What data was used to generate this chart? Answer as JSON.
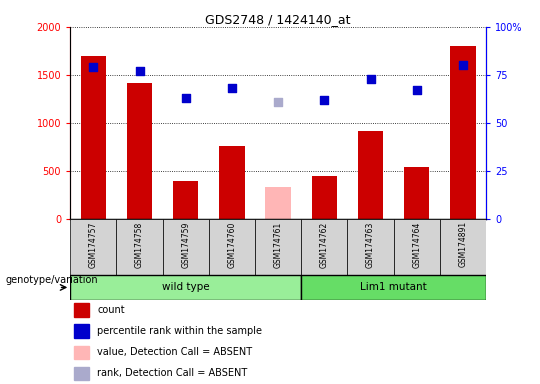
{
  "title": "GDS2748 / 1424140_at",
  "samples": [
    "GSM174757",
    "GSM174758",
    "GSM174759",
    "GSM174760",
    "GSM174761",
    "GSM174762",
    "GSM174763",
    "GSM174764",
    "GSM174891"
  ],
  "counts": [
    1700,
    1420,
    390,
    760,
    null,
    450,
    920,
    540,
    1800
  ],
  "counts_absent": [
    null,
    null,
    null,
    null,
    330,
    null,
    null,
    null,
    null
  ],
  "percentile_ranks": [
    79,
    77,
    63,
    68,
    null,
    62,
    73,
    67,
    80
  ],
  "percentile_absent": [
    null,
    null,
    null,
    null,
    61,
    null,
    null,
    null,
    null
  ],
  "wild_type_indices": [
    0,
    1,
    2,
    3,
    4
  ],
  "lim1_mutant_indices": [
    5,
    6,
    7,
    8
  ],
  "ylim_left": [
    0,
    2000
  ],
  "ylim_right": [
    0,
    100
  ],
  "yticks_left": [
    0,
    500,
    1000,
    1500,
    2000
  ],
  "ytick_labels_left": [
    "0",
    "500",
    "1000",
    "1500",
    "2000"
  ],
  "yticks_right": [
    0,
    25,
    50,
    75,
    100
  ],
  "ytick_labels_right": [
    "0",
    "25",
    "50",
    "75",
    "100%"
  ],
  "bar_color": "#CC0000",
  "bar_absent_color": "#FFB6B6",
  "dot_color": "#0000CC",
  "dot_absent_color": "#AAAACC",
  "wild_type_color": "#99EE99",
  "lim1_color": "#66DD66",
  "genotype_label": "genotype/variation",
  "wild_type_label": "wild type",
  "lim1_label": "Lim1 mutant",
  "legend": [
    {
      "color": "#CC0000",
      "label": "count"
    },
    {
      "color": "#0000CC",
      "label": "percentile rank within the sample"
    },
    {
      "color": "#FFB6B6",
      "label": "value, Detection Call = ABSENT"
    },
    {
      "color": "#AAAACC",
      "label": "rank, Detection Call = ABSENT"
    }
  ],
  "bar_width": 0.55,
  "dot_size": 30,
  "gridline_color": "#000000",
  "gridline_style": "dotted"
}
